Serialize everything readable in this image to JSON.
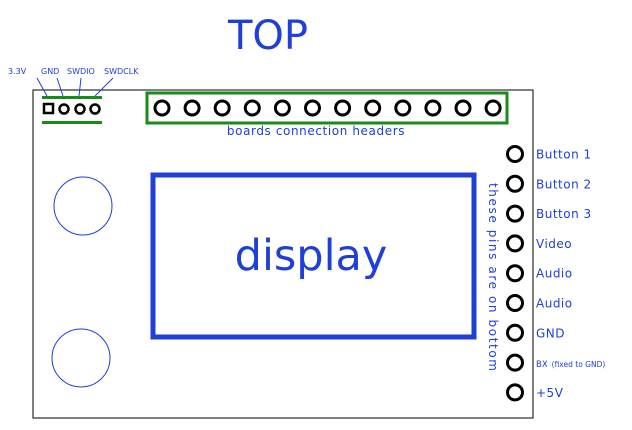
{
  "title": "TOP",
  "debug_header": {
    "labels": [
      "3.3V",
      "GND",
      "SWDIO",
      "SWDCLK"
    ]
  },
  "headers_caption": "boards connection headers",
  "display_label": "display",
  "side_note": "these pins are on bottom",
  "side_pins": [
    {
      "label": "Button 1"
    },
    {
      "label": "Button 2"
    },
    {
      "label": "Button 3"
    },
    {
      "label": "Video"
    },
    {
      "label": "Audio"
    },
    {
      "label": "Audio"
    },
    {
      "label": "GND"
    },
    {
      "label": "BX",
      "note": "(fixed to GND)"
    },
    {
      "label": "+5V"
    }
  ],
  "colors": {
    "accent_blue": "#1f3fd6",
    "header_green": "#1a8a1a",
    "outline": "#000000"
  }
}
